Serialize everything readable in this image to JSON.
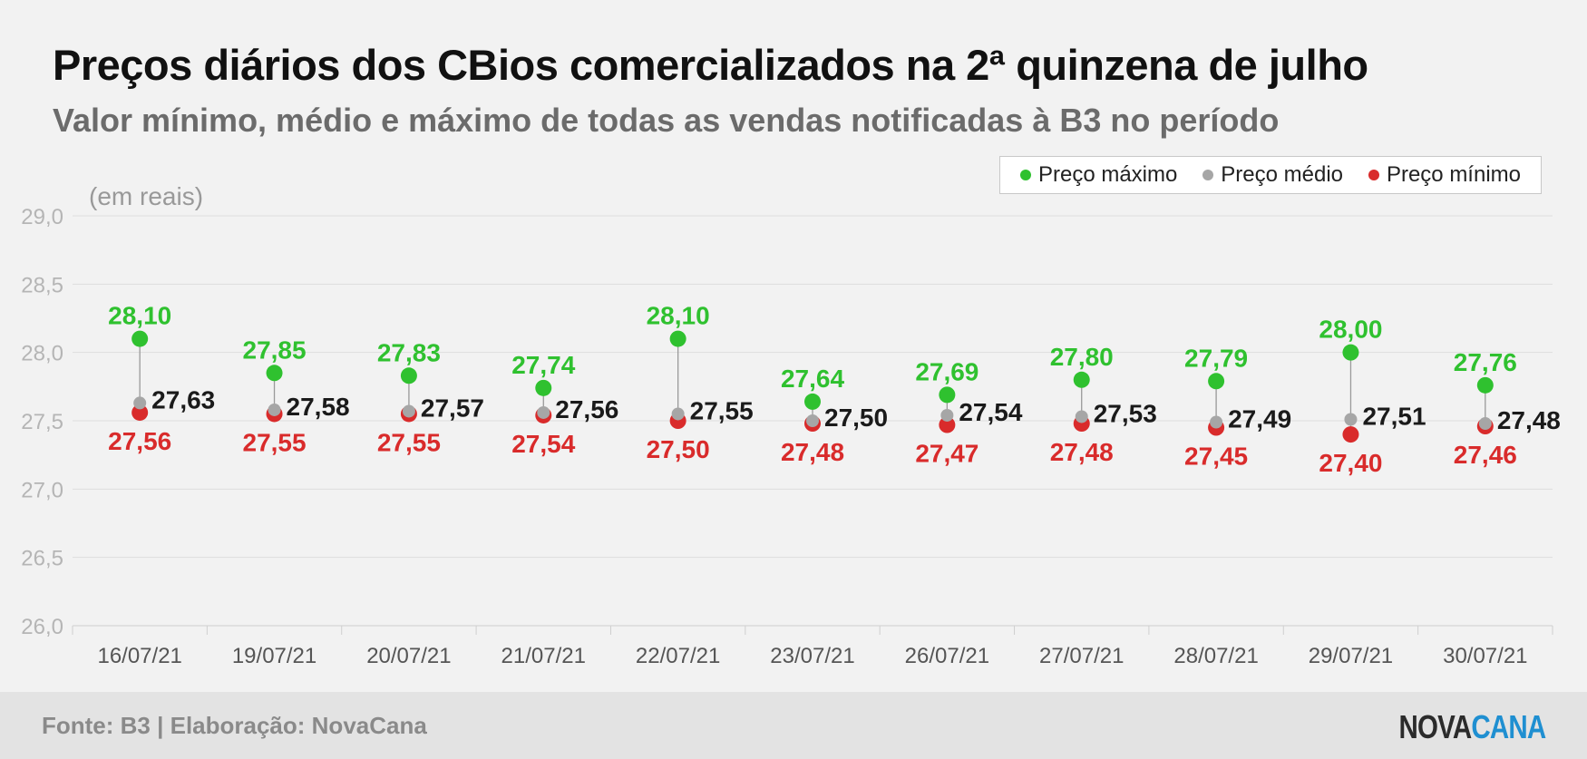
{
  "header": {
    "title": "Preços diários dos CBios comercializados na 2ª quinzena de julho",
    "subtitle": "Valor mínimo, médio e máximo de todas as vendas notificadas à B3 no período"
  },
  "legend": {
    "items": [
      {
        "label": "Preço máximo",
        "color": "#2fc12f"
      },
      {
        "label": "Preço médio",
        "color": "#a6a6a6"
      },
      {
        "label": "Preço mínimo",
        "color": "#d92b2b"
      }
    ]
  },
  "footer": {
    "source": "Fonte: B3 | Elaboração: NovaCana",
    "logo_part1": "NOVA",
    "logo_part2": "CANA"
  },
  "chart_data": {
    "type": "scatter",
    "unit_label": "(em reais)",
    "categories": [
      "16/07/21",
      "19/07/21",
      "20/07/21",
      "21/07/21",
      "22/07/21",
      "23/07/21",
      "26/07/21",
      "27/07/21",
      "28/07/21",
      "29/07/21",
      "30/07/21"
    ],
    "series": [
      {
        "name": "Preço máximo",
        "color": "#2fc12f",
        "values": [
          28.1,
          27.85,
          27.83,
          27.74,
          28.1,
          27.64,
          27.69,
          27.8,
          27.79,
          28.0,
          27.76
        ]
      },
      {
        "name": "Preço médio",
        "color": "#a6a6a6",
        "values": [
          27.63,
          27.58,
          27.57,
          27.56,
          27.55,
          27.5,
          27.54,
          27.53,
          27.49,
          27.51,
          27.48
        ]
      },
      {
        "name": "Preço mínimo",
        "color": "#d92b2b",
        "values": [
          27.56,
          27.55,
          27.55,
          27.54,
          27.5,
          27.48,
          27.47,
          27.48,
          27.45,
          27.4,
          27.46
        ]
      }
    ],
    "ylim": [
      26.0,
      29.0
    ],
    "yticks": [
      26.0,
      26.5,
      27.0,
      27.5,
      28.0,
      28.5,
      29.0
    ],
    "ytick_labels": [
      "26,0",
      "26,5",
      "27,0",
      "27,5",
      "28,0",
      "28,5",
      "29,0"
    ],
    "data_labels": {
      "max": [
        "28,10",
        "27,85",
        "27,83",
        "27,74",
        "28,10",
        "27,64",
        "27,69",
        "27,80",
        "27,79",
        "28,00",
        "27,76"
      ],
      "avg": [
        "27,63",
        "27,58",
        "27,57",
        "27,56",
        "27,55",
        "27,50",
        "27,54",
        "27,53",
        "27,49",
        "27,51",
        "27,48"
      ],
      "min": [
        "27,56",
        "27,55",
        "27,55",
        "27,54",
        "27,50",
        "27,48",
        "27,47",
        "27,48",
        "27,45",
        "27,40",
        "27,46"
      ]
    },
    "grid": true,
    "legend_position": "top-right"
  }
}
